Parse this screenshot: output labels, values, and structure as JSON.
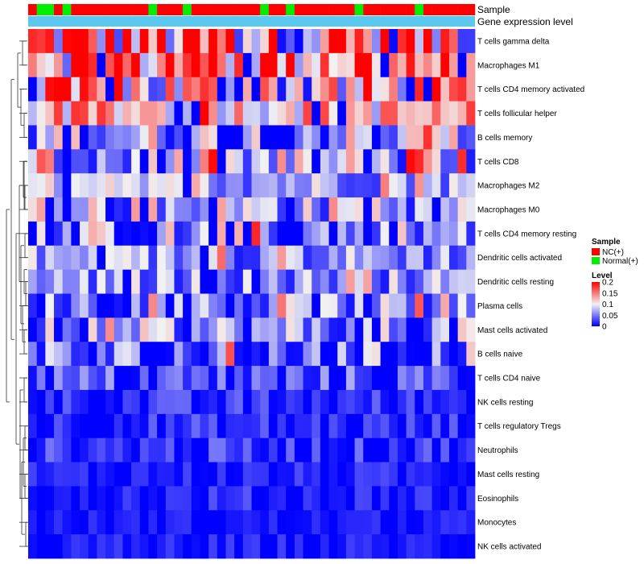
{
  "colors": {
    "nc": "#ff0000",
    "normal": "#00ee00",
    "gene_bar": "#5bc8f0",
    "low": "#0000ff",
    "mid": "#f2f2f2",
    "high": "#ff0000",
    "dendro": "#333333"
  },
  "chart_data": {
    "type": "heatmap",
    "annotation_labels": [
      "Sample",
      "Gene expression level"
    ],
    "sample_groups": [
      "N",
      "G",
      "G",
      "N",
      "G",
      "N",
      "N",
      "N",
      "N",
      "N",
      "N",
      "N",
      "N",
      "N",
      "G",
      "N",
      "N",
      "N",
      "G",
      "N",
      "N",
      "N",
      "N",
      "N",
      "N",
      "N",
      "N",
      "G",
      "N",
      "N",
      "G",
      "N",
      "N",
      "N",
      "N",
      "N",
      "N",
      "N",
      "G",
      "N",
      "N",
      "N",
      "N",
      "N",
      "N",
      "G",
      "N",
      "N",
      "N",
      "N",
      "N",
      "N"
    ],
    "rows": [
      "T cells gamma delta",
      "Macrophages M1",
      "T cells CD4 memory activated",
      "T cells follicular helper",
      "B cells memory",
      "T cells CD8",
      "Macrophages M2",
      "Macrophages M0",
      "T cells CD4 memory resting",
      "Dendritic cells activated",
      "Dendritic cells resting",
      "Plasma cells",
      "Mast cells activated",
      "B cells naive",
      "T cells CD4 naive",
      "NK cells resting",
      "T cells regulatory  Tregs",
      "Neutrophils",
      "Mast cells resting",
      "Eosinophils",
      "Monocytes",
      "NK cells activated"
    ],
    "n_columns": 52,
    "value_range": [
      0,
      0.2
    ],
    "legend": {
      "sample_title": "Sample",
      "sample_entries": [
        "NC(+)",
        "Normal(+)"
      ],
      "level_title": "Level",
      "level_ticks": [
        "0.2",
        "0.15",
        "0.1",
        "0.05",
        "0"
      ],
      "level_tick_values": [
        0.2,
        0.15,
        0.1,
        0.05,
        0
      ]
    }
  }
}
